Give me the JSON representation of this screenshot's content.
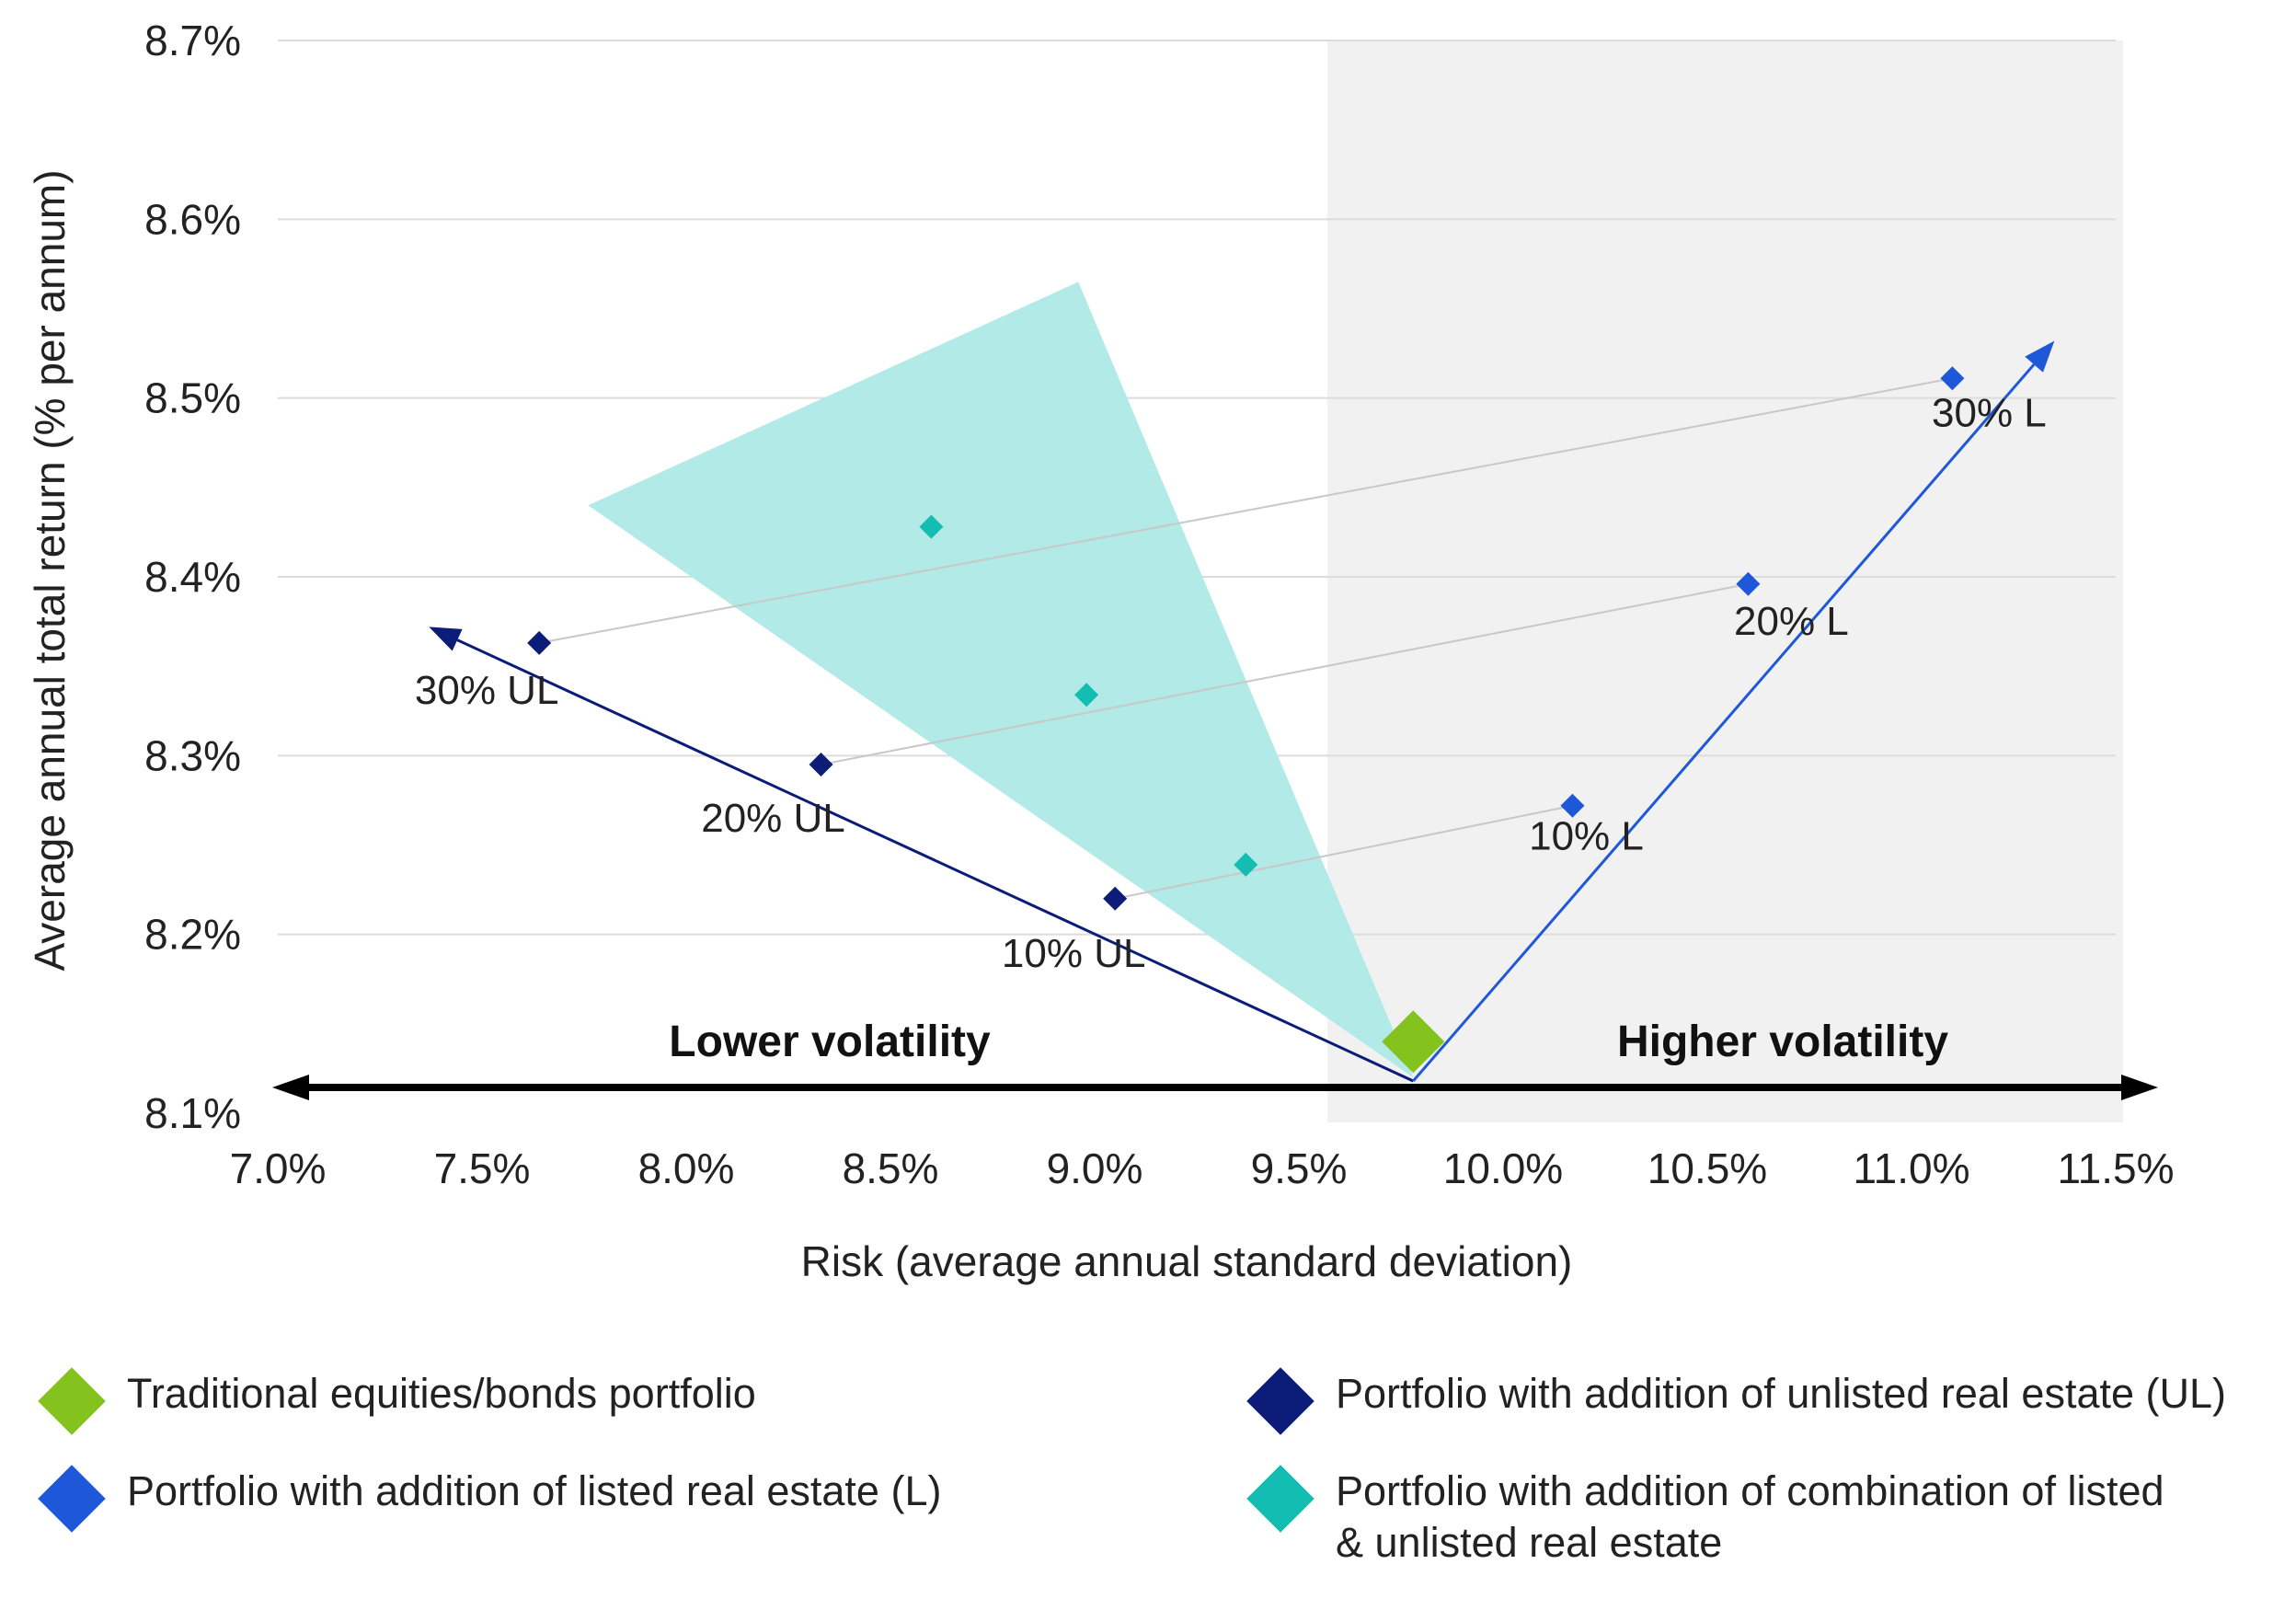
{
  "colors": {
    "traditional": "#84C21D",
    "unlisted": "#0B1D78",
    "listed": "#1E58D8",
    "combination": "#13BDB1",
    "combination_region": "#B1EAE6",
    "shade": "#F1F1F1",
    "grid": "#DCDCDC",
    "connector": "#C8C8C8"
  },
  "chart_data": {
    "type": "scatter",
    "xlabel": "Risk (average annual standard deviation)",
    "ylabel": "Average annual total return (% per annum)",
    "xlim": [
      7.0,
      11.5
    ],
    "ylim": [
      8.1,
      8.7
    ],
    "x_ticks": [
      7.0,
      7.5,
      8.0,
      8.5,
      9.0,
      9.5,
      10.0,
      10.5,
      11.0,
      11.5
    ],
    "x_tick_labels": [
      "7.0%",
      "7.5%",
      "8.0%",
      "8.5%",
      "9.0%",
      "9.5%",
      "10.0%",
      "10.5%",
      "11.0%",
      "11.5%"
    ],
    "y_ticks": [
      8.1,
      8.2,
      8.3,
      8.4,
      8.5,
      8.6,
      8.7
    ],
    "y_tick_labels": [
      "8.1%",
      "8.2%",
      "8.3%",
      "8.4%",
      "8.5%",
      "8.6%",
      "8.7%"
    ],
    "grid": true,
    "shaded_region": {
      "x_from": 9.57,
      "x_to": 11.5,
      "meaning": "higher volatility"
    },
    "combination_region": [
      [
        7.76,
        8.44
      ],
      [
        8.96,
        8.565
      ],
      [
        9.78,
        8.12
      ]
    ],
    "series": [
      {
        "name": "Traditional equities/bonds portfolio",
        "color_key": "traditional",
        "points": [
          {
            "x": 9.78,
            "y": 8.14,
            "label": ""
          }
        ]
      },
      {
        "name": "Portfolio with addition of unlisted real estate (UL)",
        "color_key": "unlisted",
        "points": [
          {
            "x": 9.05,
            "y": 8.22,
            "label": "10% UL"
          },
          {
            "x": 8.33,
            "y": 8.295,
            "label": "20% UL"
          },
          {
            "x": 7.64,
            "y": 8.363,
            "label": "30% UL"
          }
        ]
      },
      {
        "name": "Portfolio with addition of listed real estate (L)",
        "color_key": "listed",
        "points": [
          {
            "x": 10.17,
            "y": 8.272,
            "label": "10% L"
          },
          {
            "x": 10.6,
            "y": 8.396,
            "label": "20% L"
          },
          {
            "x": 11.1,
            "y": 8.511,
            "label": "30% L"
          }
        ]
      },
      {
        "name": "Portfolio with addition of combination of listed & unlisted real estate",
        "color_key": "combination",
        "points": [
          {
            "x": 9.37,
            "y": 8.239,
            "label": ""
          },
          {
            "x": 8.98,
            "y": 8.334,
            "label": ""
          },
          {
            "x": 8.6,
            "y": 8.428,
            "label": ""
          }
        ]
      }
    ],
    "arrows": [
      {
        "name": "unlisted-trend-arrow",
        "color_key": "unlisted",
        "from": [
          9.78,
          8.118
        ],
        "to": [
          7.37,
          8.372
        ]
      },
      {
        "name": "listed-trend-arrow",
        "color_key": "listed",
        "from": [
          9.78,
          8.118
        ],
        "to": [
          11.35,
          8.532
        ]
      }
    ],
    "annotations": {
      "lower": "Lower volatility",
      "higher": "Higher volatility"
    }
  },
  "legend": {
    "items": [
      {
        "label": "Traditional equities/bonds portfolio",
        "color_key": "traditional"
      },
      {
        "label": "Portfolio with addition of unlisted real estate (UL)",
        "color_key": "unlisted"
      },
      {
        "label": "Portfolio with addition of listed real estate (L)",
        "color_key": "listed"
      },
      {
        "label_line1": "Portfolio with addition of combination of listed",
        "label_line2": "& unlisted real estate",
        "color_key": "combination"
      }
    ]
  }
}
